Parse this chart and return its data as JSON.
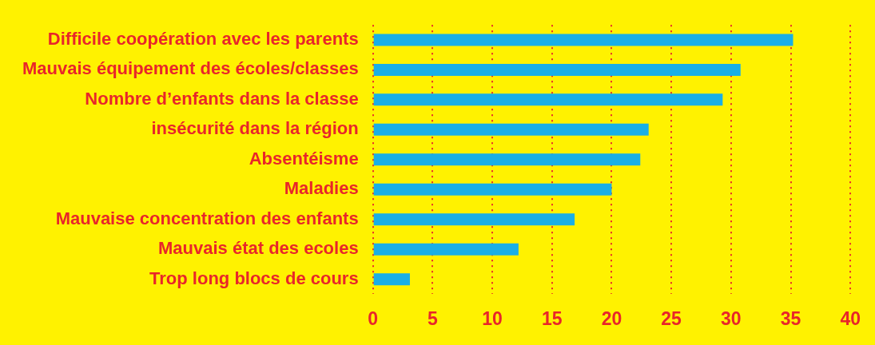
{
  "chart_data": {
    "type": "bar",
    "orientation": "horizontal",
    "categories": [
      "Difficile coopération avec les parents",
      "Mauvais équipement des écoles/classes",
      "Nombre d’enfants dans la classe",
      "insécurité dans la région",
      "Absentéisme",
      "Maladies",
      "Mauvaise concentration des enfants",
      "Mauvais état des ecoles",
      "Trop long blocs de cours"
    ],
    "values": [
      35.2,
      30.8,
      29.3,
      23.1,
      22.4,
      20.0,
      16.9,
      12.2,
      3.1
    ],
    "color": "#1aafe6",
    "xlim": [
      0,
      40
    ],
    "xticks": [
      0,
      5,
      10,
      15,
      20,
      25,
      30,
      35,
      40
    ],
    "grid": "x",
    "legend": false
  }
}
